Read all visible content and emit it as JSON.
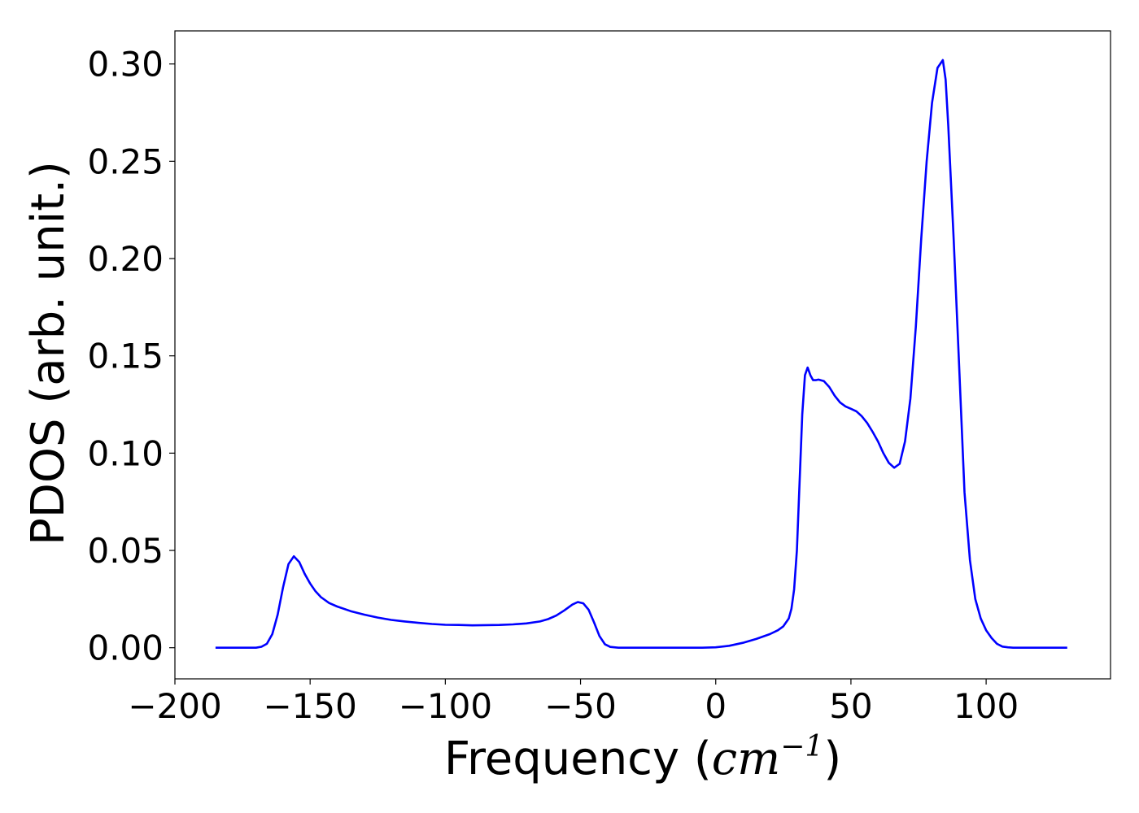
{
  "chart_data": {
    "type": "line",
    "xlabel": "Frequency (cm⁻¹)",
    "xlabel_parts": {
      "prefix": "Frequency (",
      "unit_base": "cm",
      "unit_exp": "−1",
      "suffix": ")"
    },
    "ylabel": "PDOS (arb. unit.)",
    "xlim": [
      -200,
      146
    ],
    "ylim": [
      -0.016,
      0.317
    ],
    "xticks": [
      -200,
      -150,
      -100,
      -50,
      0,
      50,
      100
    ],
    "xtick_labels": [
      "−200",
      "−150",
      "−100",
      "−50",
      "0",
      "50",
      "100"
    ],
    "yticks": [
      0.0,
      0.05,
      0.1,
      0.15,
      0.2,
      0.25,
      0.3
    ],
    "ytick_labels": [
      "0.00",
      "0.05",
      "0.10",
      "0.15",
      "0.20",
      "0.25",
      "0.30"
    ],
    "grid": false,
    "legend": "none",
    "series": [
      {
        "color": "#0000ff",
        "points": [
          [
            -185,
            0.0
          ],
          [
            -175,
            0.0
          ],
          [
            -170,
            0.0
          ],
          [
            -168,
            0.0005
          ],
          [
            -166,
            0.002
          ],
          [
            -164,
            0.007
          ],
          [
            -162,
            0.017
          ],
          [
            -160,
            0.031
          ],
          [
            -158,
            0.043
          ],
          [
            -156,
            0.047
          ],
          [
            -154,
            0.044
          ],
          [
            -152,
            0.038
          ],
          [
            -150,
            0.033
          ],
          [
            -148,
            0.029
          ],
          [
            -146,
            0.026
          ],
          [
            -143,
            0.023
          ],
          [
            -140,
            0.0212
          ],
          [
            -135,
            0.0188
          ],
          [
            -130,
            0.017
          ],
          [
            -125,
            0.0155
          ],
          [
            -120,
            0.0143
          ],
          [
            -115,
            0.0135
          ],
          [
            -110,
            0.0128
          ],
          [
            -105,
            0.0122
          ],
          [
            -100,
            0.0118
          ],
          [
            -95,
            0.0117
          ],
          [
            -90,
            0.0115
          ],
          [
            -85,
            0.0116
          ],
          [
            -80,
            0.0117
          ],
          [
            -75,
            0.012
          ],
          [
            -70,
            0.0125
          ],
          [
            -65,
            0.0135
          ],
          [
            -62,
            0.0147
          ],
          [
            -59,
            0.0165
          ],
          [
            -56,
            0.0192
          ],
          [
            -53,
            0.0222
          ],
          [
            -51,
            0.0235
          ],
          [
            -49,
            0.0228
          ],
          [
            -47,
            0.0195
          ],
          [
            -45,
            0.013
          ],
          [
            -43,
            0.006
          ],
          [
            -41,
            0.0018
          ],
          [
            -39,
            0.0004
          ],
          [
            -36,
            0.0
          ],
          [
            -20,
            0.0
          ],
          [
            -5,
            0.0
          ],
          [
            0,
            0.0002
          ],
          [
            5,
            0.001
          ],
          [
            10,
            0.0025
          ],
          [
            15,
            0.0045
          ],
          [
            20,
            0.007
          ],
          [
            23,
            0.009
          ],
          [
            25,
            0.011
          ],
          [
            27,
            0.015
          ],
          [
            28,
            0.02
          ],
          [
            29,
            0.03
          ],
          [
            30,
            0.05
          ],
          [
            31,
            0.085
          ],
          [
            32,
            0.12
          ],
          [
            33,
            0.14
          ],
          [
            34,
            0.144
          ],
          [
            35,
            0.14
          ],
          [
            36,
            0.1375
          ],
          [
            37,
            0.1375
          ],
          [
            38,
            0.1378
          ],
          [
            40,
            0.137
          ],
          [
            42,
            0.134
          ],
          [
            44,
            0.1295
          ],
          [
            46,
            0.126
          ],
          [
            48,
            0.124
          ],
          [
            50,
            0.1228
          ],
          [
            52,
            0.1215
          ],
          [
            54,
            0.119
          ],
          [
            56,
            0.1155
          ],
          [
            58,
            0.111
          ],
          [
            60,
            0.106
          ],
          [
            62,
            0.1
          ],
          [
            64,
            0.095
          ],
          [
            66,
            0.0925
          ],
          [
            68,
            0.0945
          ],
          [
            70,
            0.106
          ],
          [
            72,
            0.128
          ],
          [
            74,
            0.165
          ],
          [
            76,
            0.21
          ],
          [
            78,
            0.25
          ],
          [
            80,
            0.28
          ],
          [
            82,
            0.298
          ],
          [
            84,
            0.302
          ],
          [
            85,
            0.292
          ],
          [
            86,
            0.268
          ],
          [
            88,
            0.21
          ],
          [
            90,
            0.145
          ],
          [
            92,
            0.08
          ],
          [
            94,
            0.045
          ],
          [
            96,
            0.025
          ],
          [
            98,
            0.015
          ],
          [
            100,
            0.009
          ],
          [
            102,
            0.005
          ],
          [
            104,
            0.002
          ],
          [
            106,
            0.0006
          ],
          [
            108,
            0.0002
          ],
          [
            110,
            0.0
          ],
          [
            120,
            0.0
          ],
          [
            130,
            0.0
          ]
        ]
      }
    ]
  }
}
